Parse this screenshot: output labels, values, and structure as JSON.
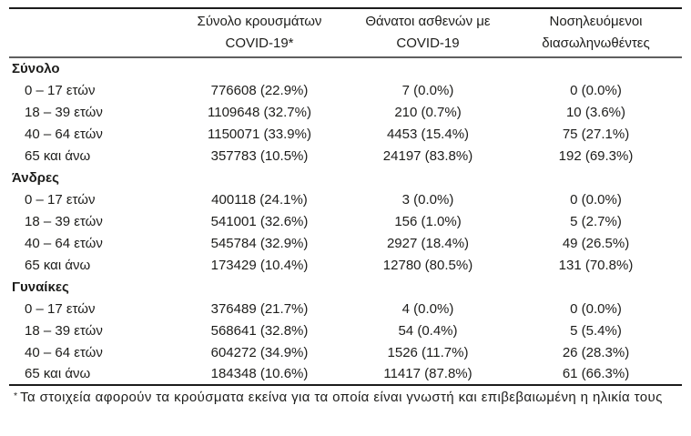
{
  "table": {
    "col_headers": [
      {
        "line1": "Σύνολο κρουσμάτων",
        "line2": "COVID-19*"
      },
      {
        "line1": "Θάνατοι ασθενών με",
        "line2": "COVID-19"
      },
      {
        "line1": "Νοσηλευόμενοι",
        "line2": "διασωληνωθέντες"
      }
    ],
    "groups": [
      {
        "label": "Σύνολο",
        "rows": [
          {
            "label": "0 – 17 ετών",
            "cases": "776608 (22.9%)",
            "deaths": "7 (0.0%)",
            "intubated": "0 (0.0%)"
          },
          {
            "label": "18 – 39 ετών",
            "cases": "1109648 (32.7%)",
            "deaths": "210 (0.7%)",
            "intubated": "10 (3.6%)"
          },
          {
            "label": "40 – 64 ετών",
            "cases": "1150071 (33.9%)",
            "deaths": "4453 (15.4%)",
            "intubated": "75 (27.1%)"
          },
          {
            "label": "65 και άνω",
            "cases": "357783 (10.5%)",
            "deaths": "24197 (83.8%)",
            "intubated": "192 (69.3%)"
          }
        ]
      },
      {
        "label": "Άνδρες",
        "rows": [
          {
            "label": "0 – 17 ετών",
            "cases": "400118 (24.1%)",
            "deaths": "3 (0.0%)",
            "intubated": "0 (0.0%)"
          },
          {
            "label": "18 – 39 ετών",
            "cases": "541001 (32.6%)",
            "deaths": "156 (1.0%)",
            "intubated": "5 (2.7%)"
          },
          {
            "label": "40 – 64 ετών",
            "cases": "545784 (32.9%)",
            "deaths": "2927 (18.4%)",
            "intubated": "49 (26.5%)"
          },
          {
            "label": "65 και άνω",
            "cases": "173429 (10.4%)",
            "deaths": "12780 (80.5%)",
            "intubated": "131 (70.8%)"
          }
        ]
      },
      {
        "label": "Γυναίκες",
        "rows": [
          {
            "label": "0 – 17 ετών",
            "cases": "376489 (21.7%)",
            "deaths": "4 (0.0%)",
            "intubated": "0 (0.0%)"
          },
          {
            "label": "18 – 39 ετών",
            "cases": "568641 (32.8%)",
            "deaths": "54 (0.4%)",
            "intubated": "5 (5.4%)"
          },
          {
            "label": "40 – 64 ετών",
            "cases": "604272 (34.9%)",
            "deaths": "1526 (11.7%)",
            "intubated": "26 (28.3%)"
          },
          {
            "label": "65 και άνω",
            "cases": "184348 (10.6%)",
            "deaths": "11417 (87.8%)",
            "intubated": "61 (66.3%)"
          }
        ]
      }
    ]
  },
  "footnote": {
    "marker": "*",
    "text": "Τα στοιχεία αφορούν τα κρούσματα εκείνα για τα οποία είναι γνωστή και επιβεβαιωμένη η ηλικία τους"
  },
  "colors": {
    "text": "#1d1d1b",
    "rule_dark": "#1c1c1c",
    "rule_gray": "#5f5f5f",
    "background": "#ffffff"
  }
}
